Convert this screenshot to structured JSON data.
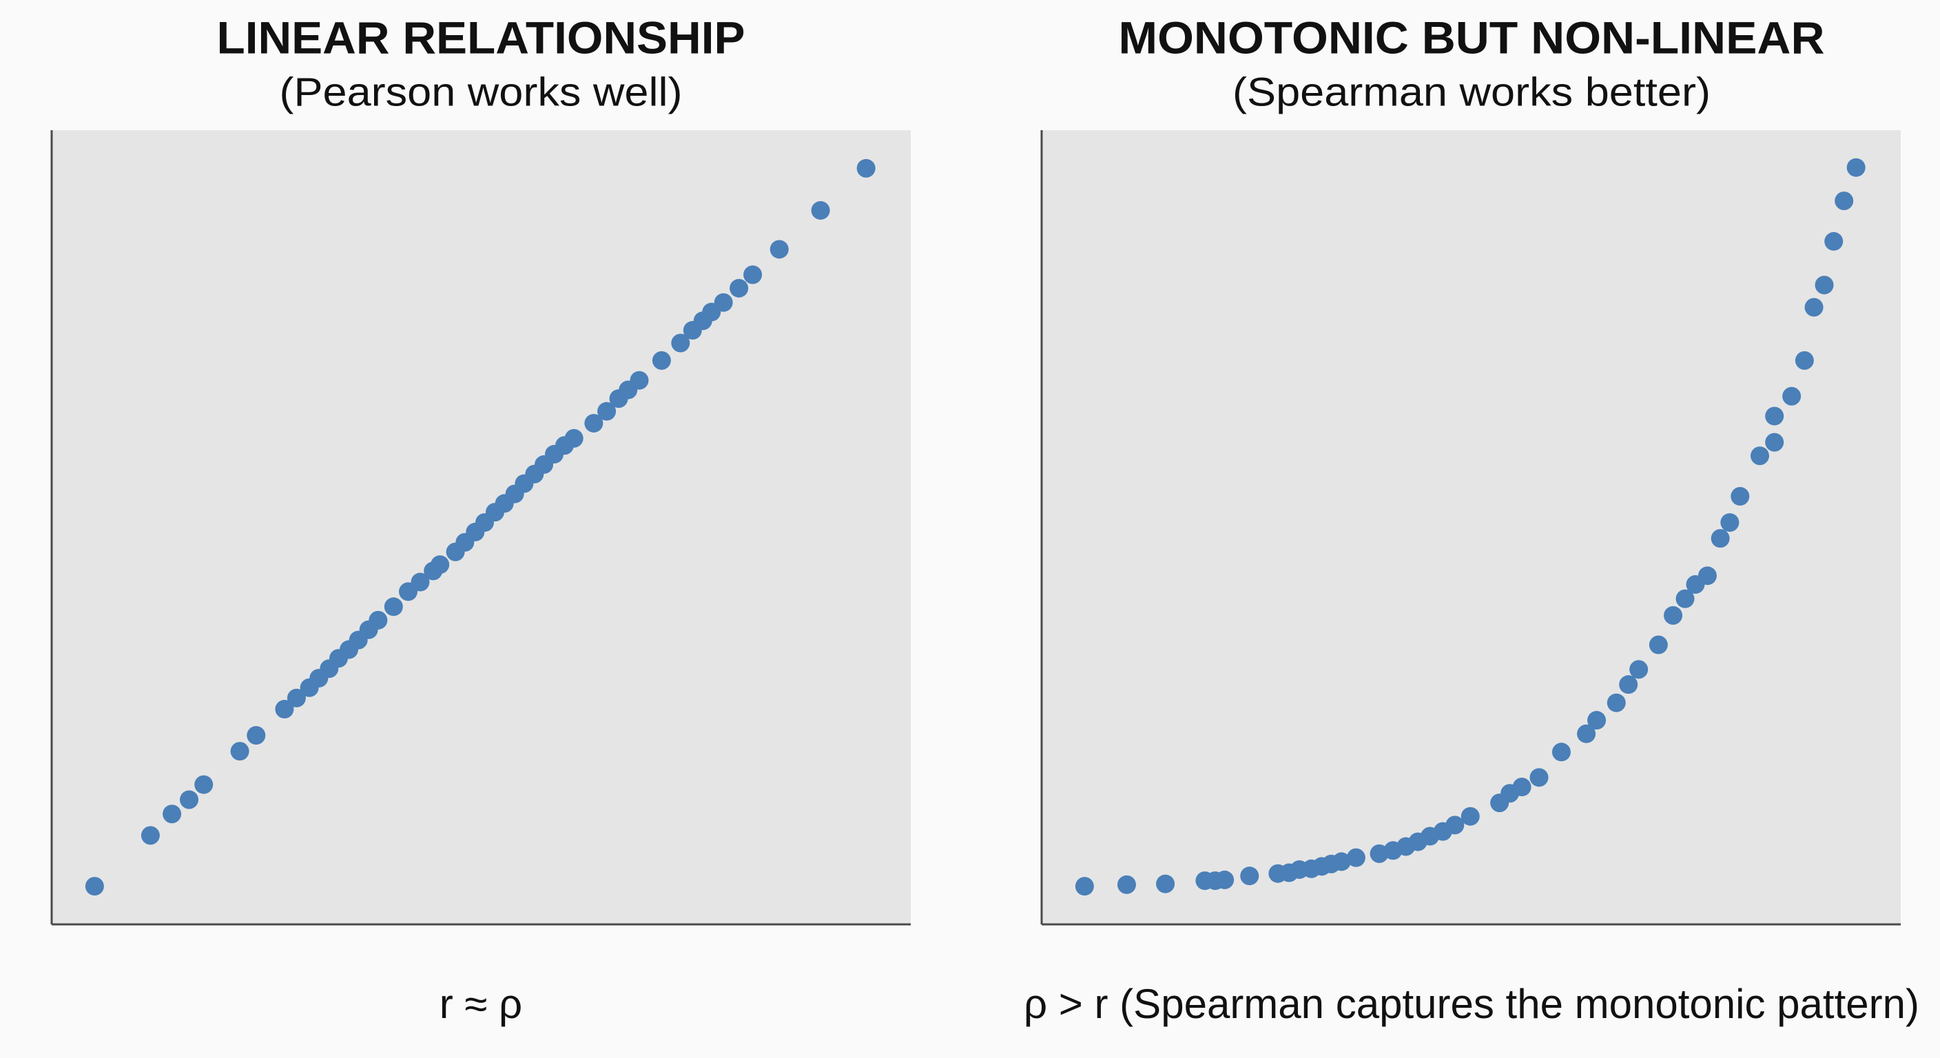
{
  "chart_data": [
    {
      "type": "scatter",
      "title": "LINEAR RELATIONSHIP",
      "subtitle": "(Pearson works well)",
      "caption": "r ≈ ρ",
      "color": "#4a7fb8",
      "xlim": [
        0,
        100
      ],
      "ylim": [
        0,
        100
      ],
      "x": [
        5.0,
        11.5,
        14.0,
        16.0,
        17.7,
        21.9,
        23.8,
        27.1,
        28.5,
        30.0,
        31.1,
        32.3,
        33.4,
        34.6,
        35.7,
        36.9,
        38.0,
        39.8,
        41.5,
        42.9,
        44.4,
        45.2,
        47.0,
        48.1,
        49.3,
        50.4,
        51.6,
        52.7,
        53.9,
        55.0,
        56.2,
        57.3,
        58.5,
        59.7,
        60.8,
        63.1,
        64.6,
        66.0,
        67.1,
        68.4,
        71.0,
        73.2,
        74.6,
        75.8,
        76.8,
        78.2,
        80.0,
        81.6,
        84.7,
        89.5,
        94.8
      ],
      "values": [
        4.8,
        11.2,
        13.9,
        15.7,
        17.6,
        21.8,
        23.8,
        27.1,
        28.5,
        29.8,
        31.0,
        32.2,
        33.5,
        34.6,
        35.8,
        37.1,
        38.3,
        40.0,
        41.9,
        43.1,
        44.5,
        45.3,
        46.9,
        48.1,
        49.4,
        50.6,
        51.9,
        53.0,
        54.2,
        55.5,
        56.7,
        57.9,
        59.2,
        60.3,
        61.2,
        63.1,
        64.6,
        66.2,
        67.3,
        68.5,
        71.0,
        73.2,
        74.8,
        76.0,
        77.1,
        78.3,
        80.1,
        81.8,
        85.0,
        89.9,
        95.2
      ]
    },
    {
      "type": "scatter",
      "title": "MONOTONIC BUT NON-LINEAR",
      "subtitle": "(Spearman works better)",
      "caption": "ρ > r (Spearman captures the monotonic pattern)",
      "color": "#4a7fb8",
      "xlim": [
        0,
        100
      ],
      "ylim": [
        0,
        100
      ],
      "x": [
        5.0,
        9.9,
        14.4,
        19.0,
        20.2,
        21.3,
        24.2,
        27.5,
        28.8,
        30.0,
        31.4,
        32.6,
        33.7,
        34.9,
        36.6,
        39.3,
        40.9,
        42.4,
        43.8,
        45.2,
        46.7,
        48.1,
        49.9,
        53.3,
        54.5,
        55.9,
        57.9,
        60.5,
        63.4,
        64.6,
        66.9,
        68.3,
        69.5,
        71.8,
        73.5,
        74.9,
        76.1,
        77.5,
        79.0,
        80.1,
        81.3,
        83.6,
        85.3,
        85.3,
        87.3,
        88.8,
        89.9,
        91.1,
        92.2,
        93.4,
        94.8
      ],
      "values": [
        4.8,
        5.0,
        5.1,
        5.5,
        5.5,
        5.6,
        6.1,
        6.4,
        6.5,
        6.9,
        7.0,
        7.3,
        7.6,
        7.9,
        8.4,
        8.9,
        9.3,
        9.8,
        10.4,
        11.1,
        11.7,
        12.5,
        13.6,
        15.3,
        16.5,
        17.3,
        18.5,
        21.7,
        24.0,
        25.7,
        27.9,
        30.2,
        32.1,
        35.2,
        38.9,
        41.0,
        42.8,
        43.9,
        48.6,
        50.6,
        53.9,
        59.0,
        60.7,
        64.0,
        66.5,
        71.0,
        77.7,
        80.5,
        86.0,
        91.1,
        95.3
      ]
    }
  ]
}
